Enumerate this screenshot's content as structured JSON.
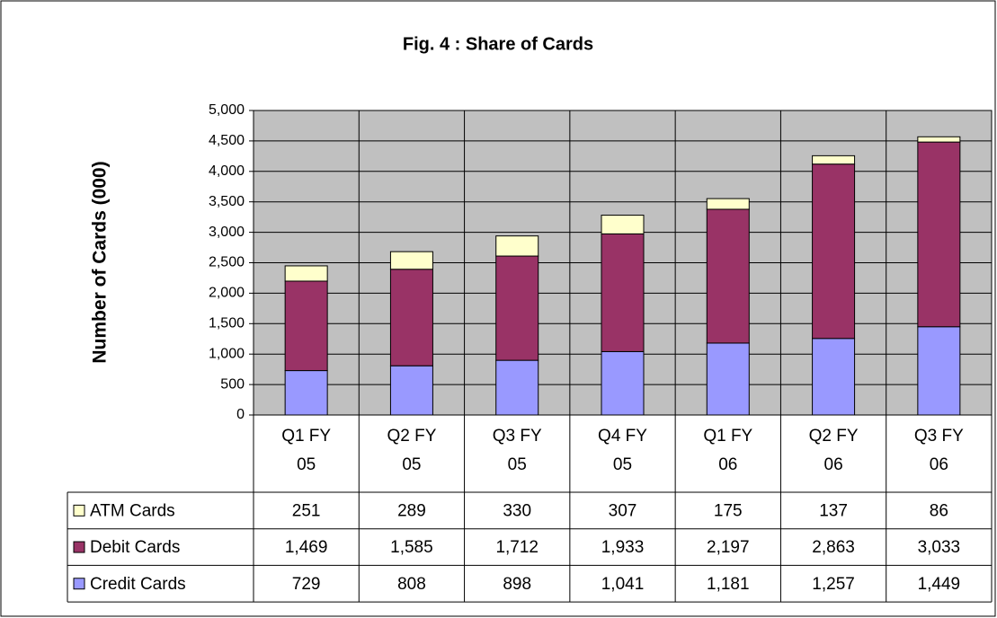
{
  "chart_data": {
    "type": "stacked_bar",
    "title": "Fig. 4 : Share of Cards",
    "y_label": "Number of Cards (000)",
    "categories": [
      "Q1 FY 05",
      "Q2 FY 05",
      "Q3 FY 05",
      "Q4 FY 05",
      "Q1 FY 06",
      "Q2 FY 06",
      "Q3 FY 06"
    ],
    "series": [
      {
        "name": "Credit Cards",
        "color": "#9999ff",
        "values": [
          729,
          808,
          898,
          1041,
          1181,
          1257,
          1449
        ],
        "value_labels": [
          "729",
          "808",
          "898",
          "1,041",
          "1,181",
          "1,257",
          "1,449"
        ]
      },
      {
        "name": "Debit Cards",
        "color": "#993366",
        "values": [
          1469,
          1585,
          1712,
          1933,
          2197,
          2863,
          3033
        ],
        "value_labels": [
          "1,469",
          "1,585",
          "1,712",
          "1,933",
          "2,197",
          "2,863",
          "3,033"
        ]
      },
      {
        "name": "ATM Cards",
        "color": "#ffffcc",
        "values": [
          251,
          289,
          330,
          307,
          175,
          137,
          86
        ],
        "value_labels": [
          "251",
          "289",
          "330",
          "307",
          "175",
          "137",
          "86"
        ]
      }
    ],
    "ylim": [
      0,
      5000
    ],
    "yticks": [
      0,
      500,
      {
        "value": 1000,
        "label": "1,000"
      },
      {
        "value": 1500,
        "label": "1,500"
      },
      {
        "value": 2000,
        "label": "2,000"
      },
      {
        "value": 2500,
        "label": "2,500"
      },
      {
        "value": 3000,
        "label": "3,000"
      },
      {
        "value": 3500,
        "label": "3,500"
      },
      {
        "value": 4000,
        "label": "4,000"
      },
      {
        "value": 4500,
        "label": "4,500"
      },
      {
        "value": 5000,
        "label": "5,000"
      }
    ],
    "grid": true,
    "plot_background": "#c0c0c0"
  }
}
